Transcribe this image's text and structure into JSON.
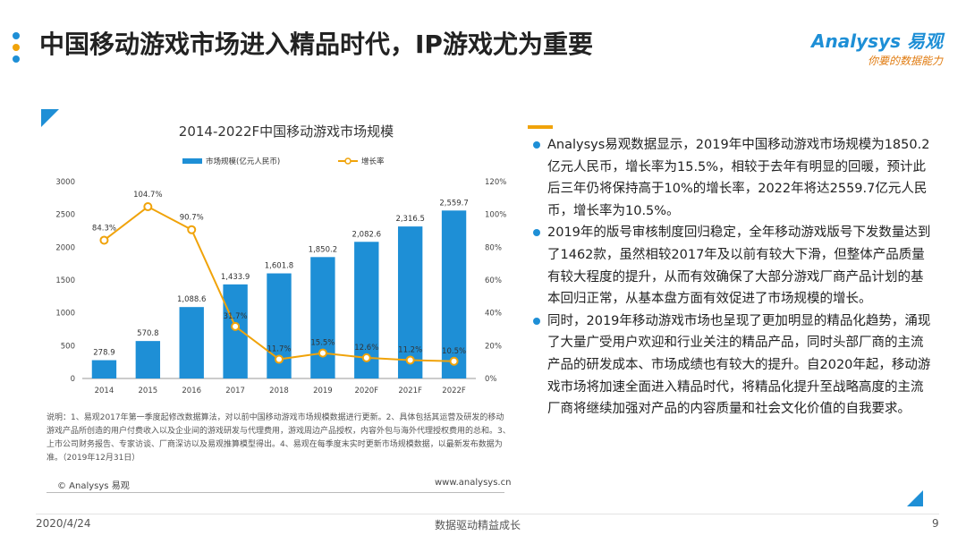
{
  "header": {
    "title": "中国移动游戏市场进入精品时代，IP游戏尤为重要",
    "logo_main": "Analysys 易观",
    "logo_sub": "你要的数据能力",
    "dot_colors": [
      "#1e8fd6",
      "#f0a30a",
      "#1e8fd6"
    ]
  },
  "chart_data": {
    "type": "bar+line",
    "title": "2014-2022F中国移动游戏市场规模",
    "categories": [
      "2014",
      "2015",
      "2016",
      "2017",
      "2018",
      "2019",
      "2020F",
      "2021F",
      "2022F"
    ],
    "series": [
      {
        "name": "市场规模(亿元人民币)",
        "type": "bar",
        "axis": "left",
        "color": "#1e8fd6",
        "values": [
          278.9,
          570.8,
          1088.6,
          1433.9,
          1601.8,
          1850.2,
          2082.6,
          2316.5,
          2559.7
        ],
        "labels": [
          "278.9",
          "570.8",
          "1,088.6",
          "1,433.9",
          "1,601.8",
          "1,850.2",
          "2,082.6",
          "2,316.5",
          "2,559.7"
        ]
      },
      {
        "name": "增长率",
        "type": "line",
        "axis": "right",
        "color": "#f0a30a",
        "values": [
          84.3,
          104.7,
          90.7,
          31.7,
          11.7,
          15.5,
          12.6,
          11.2,
          10.5
        ],
        "labels": [
          "84.3%",
          "104.7%",
          "90.7%",
          "31.7%",
          "11.7%",
          "15.5%",
          "12.6%",
          "11.2%",
          "10.5%"
        ]
      }
    ],
    "left_axis": {
      "min": 0,
      "max": 3000,
      "ticks": [
        0,
        500,
        1000,
        1500,
        2000,
        2500,
        3000
      ],
      "tick_labels": [
        "0",
        "500",
        "1000",
        "1500",
        "2000",
        "2500",
        "3000"
      ]
    },
    "right_axis": {
      "min": 0,
      "max": 120,
      "ticks": [
        0,
        20,
        40,
        60,
        80,
        100,
        120
      ],
      "tick_labels": [
        "0%",
        "20%",
        "40%",
        "60%",
        "80%",
        "100%",
        "120%"
      ]
    },
    "legend_position": "top-center"
  },
  "chart_notes": {
    "note": "说明：1、易观2017年第一季度起修改数据算法，对以前中国移动游戏市场规模数据进行更新。2、具体包括其运营及研发的移动游戏产品所创造的用户付费收入以及企业间的游戏研发与代理费用，游戏周边产品授权，内容外包与海外代理授权费用的总和。3、上市公司财务报告、专家访谈、厂商深访以及易观推算模型得出。4、易观在每季度末实时更新市场规模数据，以最新发布数据为准。（2019年12月31日）",
    "source_left": "© Analysys 易观",
    "source_right": "www.analysys.cn"
  },
  "bullets": [
    "Analysys易观数据显示，2019年中国移动游戏市场规模为1850.2亿元人民币，增长率为15.5%，相较于去年有明显的回暖，预计此后三年仍将保持高于10%的增长率，2022年将达2559.7亿元人民币，增长率为10.5%。",
    "2019年的版号审核制度回归稳定，全年移动游戏版号下发数量达到了1462款，虽然相较2017年及以前有较大下滑，但整体产品质量有较大程度的提升，从而有效确保了大部分游戏厂商产品计划的基本回归正常，从基本盘方面有效促进了市场规模的增长。",
    "同时，2019年移动游戏市场也呈现了更加明显的精品化趋势，涌现了大量广受用户欢迎和行业关注的精品产品，同时头部厂商的主流产品的研发成本、市场成绩也有较大的提升。自2020年起，移动游戏市场将加速全面进入精品时代，将精品化提升至战略高度的主流厂商将继续加强对产品的内容质量和社会文化价值的自我要求。"
  ],
  "footer": {
    "date": "2020/4/24",
    "slogan": "数据驱动精益成长",
    "page": "9"
  }
}
